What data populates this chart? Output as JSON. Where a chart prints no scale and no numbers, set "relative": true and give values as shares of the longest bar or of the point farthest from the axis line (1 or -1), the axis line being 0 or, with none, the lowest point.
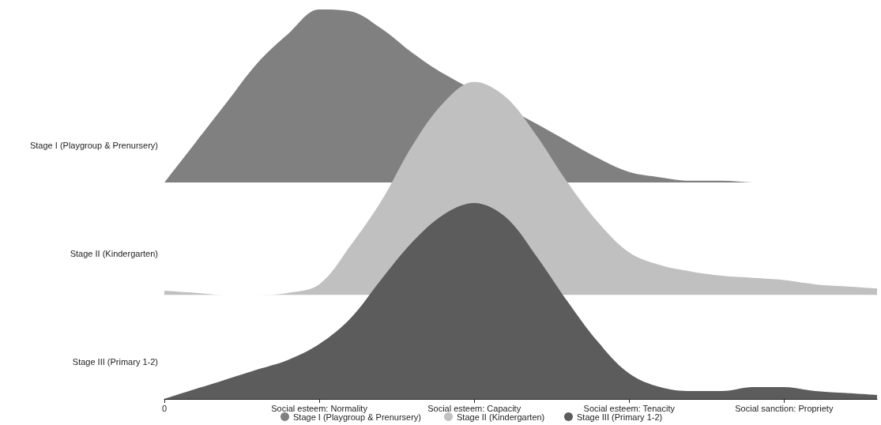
{
  "chart_data": [
    {
      "type": "area",
      "relative": true,
      "legend": "bottom",
      "marker": "none",
      "tick_labels": false,
      "ylabel": "Stage I (Playgroup & Prenursery)",
      "categories": [
        null,
        null,
        null,
        null,
        null,
        null,
        null,
        null,
        null,
        null,
        null,
        null,
        null,
        null,
        null,
        null,
        null,
        null,
        null,
        null,
        null,
        null,
        null,
        null
      ],
      "series": [
        {
          "name": "Stage I (Playgroup & Prenursery)",
          "color": "#808080",
          "values": [
            0,
            0.23,
            0.46,
            0.69,
            0.86,
            1,
            0.99,
            0.89,
            0.75,
            0.63,
            null,
            null,
            0.34,
            0.24,
            0.14,
            0.06,
            0.03,
            0.01,
            0.01,
            0,
            0,
            null,
            null,
            null
          ]
        }
      ]
    },
    {
      "type": "area",
      "relative": true,
      "legend": "bottom",
      "marker": "none",
      "tick_labels": false,
      "ylabel": "Stage II (Kindergarten)",
      "categories": [
        null,
        null,
        null,
        null,
        null,
        null,
        null,
        null,
        null,
        null,
        null,
        null,
        null,
        null,
        null,
        null,
        null,
        null,
        null,
        null,
        null,
        null,
        null,
        null
      ],
      "series": [
        {
          "name": "Stage II (Kindergarten)",
          "color": "#c0c0c0",
          "values": [
            0.02,
            0.01,
            0,
            0,
            0.01,
            0.05,
            0.23,
            0.44,
            0.7,
            0.9,
            1,
            0.93,
            0.75,
            0.53,
            0.34,
            0.2,
            0.14,
            0.11,
            0.09,
            0.08,
            0.07,
            0.05,
            0.04,
            0.03
          ]
        }
      ]
    },
    {
      "type": "area",
      "relative": true,
      "legend": "bottom",
      "marker": "none",
      "tick_labels": "x",
      "ylabel": "Stage III (Primary 1-2)",
      "categories": [
        "0",
        null,
        null,
        null,
        null,
        "Social esteem: Normality",
        null,
        null,
        null,
        null,
        "Social esteem: Capacity",
        null,
        null,
        null,
        null,
        "Social esteem: Tenacity",
        null,
        null,
        null,
        null,
        "Social sanction: Propriety",
        null,
        null,
        null
      ],
      "series": [
        {
          "name": "Stage III (Primary 1-2)",
          "color": "#5c5c5c",
          "values": [
            0,
            0.05,
            0.1,
            0.15,
            0.2,
            0.28,
            0.41,
            0.61,
            0.8,
            0.94,
            1,
            0.93,
            0.73,
            0.5,
            0.29,
            0.13,
            0.06,
            0.04,
            0.04,
            0.06,
            0.06,
            0.04,
            0.03,
            0.02
          ]
        }
      ]
    }
  ]
}
